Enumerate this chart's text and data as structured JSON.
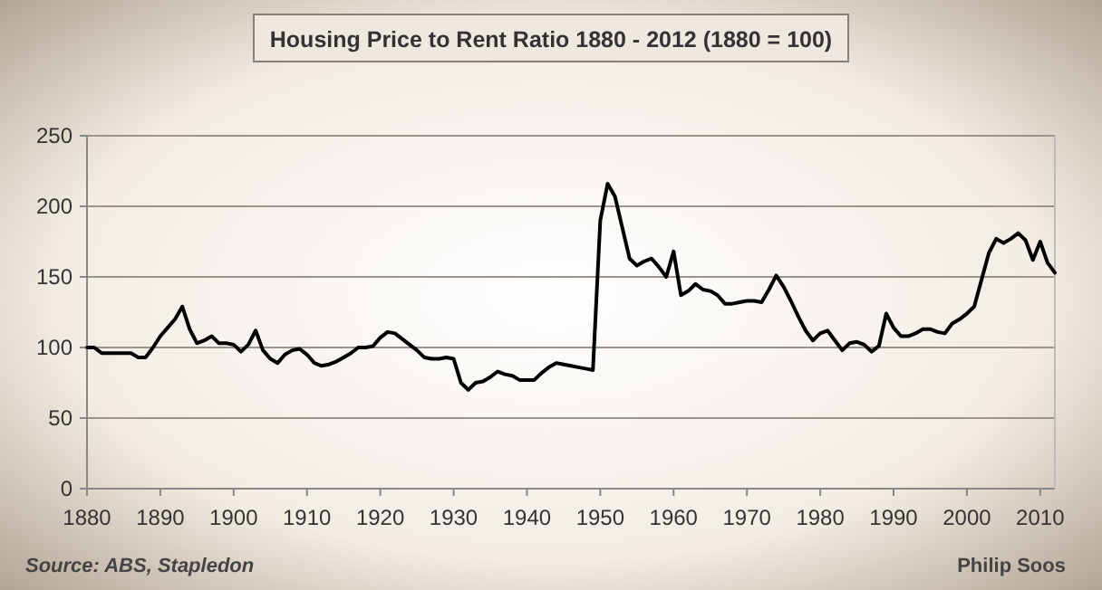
{
  "chart_data": {
    "type": "line",
    "title": "Housing Price to Rent Ratio 1880 - 2012 (1880 = 100)",
    "annotations": [
      "Source: ABS, Stapledon",
      "Philip Soos"
    ],
    "x": [
      1880,
      1881,
      1882,
      1883,
      1884,
      1885,
      1886,
      1887,
      1888,
      1889,
      1890,
      1891,
      1892,
      1893,
      1894,
      1895,
      1896,
      1897,
      1898,
      1899,
      1900,
      1901,
      1902,
      1903,
      1904,
      1905,
      1906,
      1907,
      1908,
      1909,
      1910,
      1911,
      1912,
      1913,
      1914,
      1915,
      1916,
      1917,
      1918,
      1919,
      1920,
      1921,
      1922,
      1923,
      1924,
      1925,
      1926,
      1927,
      1928,
      1929,
      1930,
      1931,
      1932,
      1933,
      1934,
      1935,
      1936,
      1937,
      1938,
      1939,
      1940,
      1941,
      1942,
      1943,
      1944,
      1945,
      1946,
      1947,
      1948,
      1949,
      1950,
      1951,
      1952,
      1953,
      1954,
      1955,
      1956,
      1957,
      1958,
      1959,
      1960,
      1961,
      1962,
      1963,
      1964,
      1965,
      1966,
      1967,
      1968,
      1969,
      1970,
      1971,
      1972,
      1973,
      1974,
      1975,
      1976,
      1977,
      1978,
      1979,
      1980,
      1981,
      1982,
      1983,
      1984,
      1985,
      1986,
      1987,
      1988,
      1989,
      1990,
      1991,
      1992,
      1993,
      1994,
      1995,
      1996,
      1997,
      1998,
      1999,
      2000,
      2001,
      2002,
      2003,
      2004,
      2005,
      2006,
      2007,
      2008,
      2009,
      2010,
      2011,
      2012
    ],
    "series": [
      {
        "color": "#000000",
        "values": [
          100,
          100,
          96,
          96,
          96,
          96,
          96,
          93,
          93,
          100,
          108,
          114,
          120,
          129,
          113,
          103,
          105,
          108,
          103,
          103,
          102,
          97,
          102,
          112,
          98,
          92,
          89,
          95,
          98,
          99,
          95,
          89,
          87,
          88,
          90,
          93,
          96,
          100,
          100,
          101,
          107,
          111,
          110,
          106,
          102,
          98,
          93,
          92,
          92,
          93,
          92,
          75,
          70,
          75,
          76,
          79,
          83,
          81,
          80,
          77,
          77,
          77,
          82,
          86,
          89,
          88,
          87,
          86,
          85,
          84,
          190,
          216,
          207,
          185,
          163,
          158,
          161,
          163,
          157,
          150,
          168,
          137,
          140,
          145,
          141,
          140,
          137,
          131,
          131,
          132,
          133,
          133,
          132,
          141,
          151,
          143,
          133,
          122,
          112,
          105,
          110,
          112,
          105,
          98,
          103,
          104,
          102,
          97,
          101,
          124,
          114,
          108,
          108,
          110,
          113,
          113,
          111,
          110,
          117,
          120,
          124,
          129,
          148,
          167,
          177,
          174,
          177,
          181,
          176,
          162,
          175,
          160,
          153
        ]
      }
    ],
    "xlim": [
      1880,
      2012
    ],
    "xticks": [
      1880,
      1890,
      1900,
      1910,
      1920,
      1930,
      1940,
      1950,
      1960,
      1970,
      1980,
      1990,
      2000,
      2010
    ],
    "ylim": [
      0,
      250
    ],
    "yticks": [
      0,
      50,
      100,
      150,
      200,
      250
    ],
    "grid": "y",
    "line_style": "solid",
    "marker": "none"
  }
}
